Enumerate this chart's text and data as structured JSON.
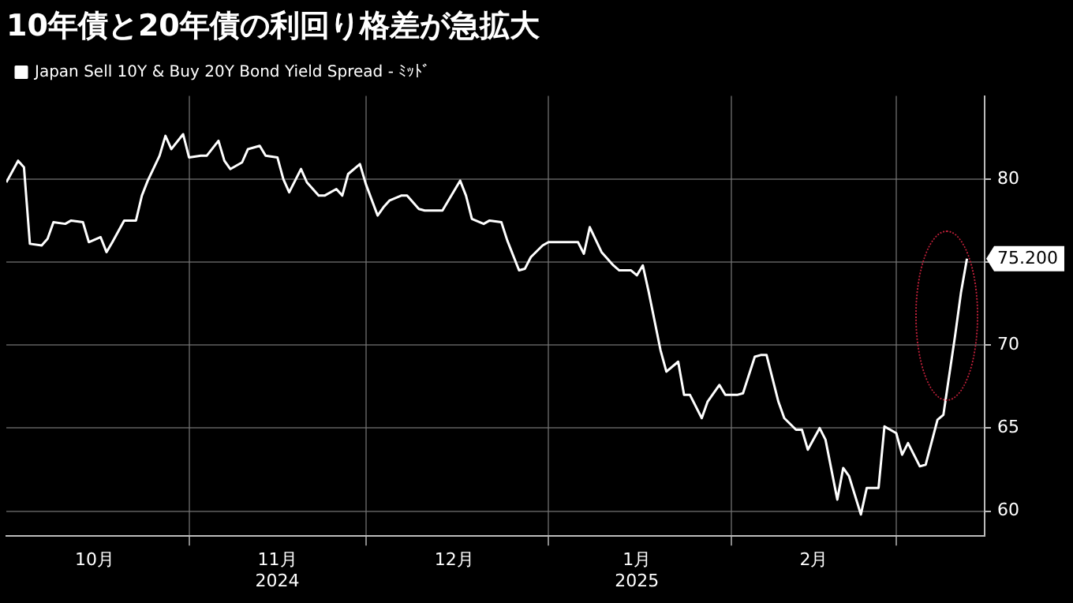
{
  "chart_data": {
    "type": "line",
    "title": "10年債と20年債の利回り格差が急拡大",
    "x": [
      "2024-10-01",
      "2024-10-03",
      "2024-10-04",
      "2024-10-05",
      "2024-10-07",
      "2024-10-08",
      "2024-10-09",
      "2024-10-11",
      "2024-10-12",
      "2024-10-14",
      "2024-10-15",
      "2024-10-17",
      "2024-10-18",
      "2024-10-19",
      "2024-10-21",
      "2024-10-23",
      "2024-10-24",
      "2024-10-25",
      "2024-10-27",
      "2024-10-28",
      "2024-10-29",
      "2024-10-31",
      "2024-11-01",
      "2024-11-03",
      "2024-11-04",
      "2024-11-06",
      "2024-11-07",
      "2024-11-08",
      "2024-11-10",
      "2024-11-11",
      "2024-11-13",
      "2024-11-14",
      "2024-11-16",
      "2024-11-17",
      "2024-11-18",
      "2024-11-20",
      "2024-11-21",
      "2024-11-23",
      "2024-11-24",
      "2024-11-26",
      "2024-11-27",
      "2024-11-28",
      "2024-11-30",
      "2024-12-01",
      "2024-12-03",
      "2024-12-04",
      "2024-12-05",
      "2024-12-07",
      "2024-12-08",
      "2024-12-10",
      "2024-12-11",
      "2024-12-13",
      "2024-12-14",
      "2024-12-17",
      "2024-12-18",
      "2024-12-19",
      "2024-12-21",
      "2024-12-22",
      "2024-12-24",
      "2024-12-25",
      "2024-12-27",
      "2024-12-28",
      "2024-12-29",
      "2024-12-31",
      "2025-01-01",
      "2025-01-03",
      "2025-01-04",
      "2025-01-06",
      "2025-01-07",
      "2025-01-08",
      "2025-01-10",
      "2025-01-12",
      "2025-01-13",
      "2025-01-15",
      "2025-01-16",
      "2025-01-17",
      "2025-01-18",
      "2025-01-20",
      "2025-01-21",
      "2025-01-23",
      "2025-01-24",
      "2025-01-25",
      "2025-01-27",
      "2025-01-28",
      "2025-01-30",
      "2025-01-31",
      "2025-02-02",
      "2025-02-03",
      "2025-02-05",
      "2025-02-06",
      "2025-02-07",
      "2025-02-09",
      "2025-02-10",
      "2025-02-12",
      "2025-02-13",
      "2025-02-14",
      "2025-02-16",
      "2025-02-17",
      "2025-02-19",
      "2025-02-20",
      "2025-02-21",
      "2025-02-23",
      "2025-02-24",
      "2025-02-26",
      "2025-02-27",
      "2025-03-01",
      "2025-03-02",
      "2025-03-03",
      "2025-03-05",
      "2025-03-06",
      "2025-03-08",
      "2025-03-09",
      "2025-03-11",
      "2025-03-12",
      "2025-03-13"
    ],
    "series": [
      {
        "name": "Japan Sell 10Y & Buy 20Y Bond Yield Spread - ﾐｯﾄﾞ",
        "color": "#ffffff",
        "values": [
          79.8,
          81.1,
          80.7,
          76.1,
          76.0,
          76.4,
          77.4,
          77.3,
          77.5,
          77.4,
          76.2,
          76.5,
          75.6,
          76.2,
          77.5,
          77.5,
          79.0,
          79.9,
          81.4,
          82.6,
          81.8,
          82.7,
          81.3,
          81.4,
          81.4,
          82.3,
          81.1,
          80.6,
          81.0,
          81.8,
          82.0,
          81.4,
          81.3,
          80.0,
          79.2,
          80.6,
          79.8,
          79.0,
          79.0,
          79.4,
          79.0,
          80.3,
          80.9,
          79.7,
          77.8,
          78.3,
          78.7,
          79.0,
          79.0,
          78.2,
          78.1,
          78.1,
          78.1,
          79.9,
          79.0,
          77.6,
          77.3,
          77.5,
          77.4,
          76.3,
          74.5,
          74.6,
          75.3,
          76.0,
          76.2,
          76.2,
          76.2,
          76.2,
          75.5,
          77.1,
          75.6,
          74.8,
          74.5,
          74.5,
          74.2,
          74.8,
          73.2,
          69.7,
          68.4,
          69.0,
          67.0,
          67.0,
          65.6,
          66.6,
          67.6,
          67.0,
          67.0,
          67.1,
          69.3,
          69.4,
          69.4,
          66.6,
          65.6,
          64.9,
          64.9,
          63.7,
          65.0,
          64.3,
          60.7,
          62.6,
          62.1,
          59.8,
          61.4,
          61.4,
          65.1,
          64.7,
          63.4,
          64.1,
          62.7,
          62.8,
          65.5,
          65.8,
          70.6,
          73.2,
          75.2
        ],
        "value_labels": [
          null,
          null,
          null,
          null,
          null,
          null,
          null,
          null,
          null,
          null,
          null,
          null,
          null,
          null,
          null,
          null,
          null,
          null,
          null,
          null,
          null,
          null,
          null,
          null,
          null,
          null,
          null,
          null,
          null,
          null,
          null,
          null,
          null,
          null,
          null,
          null,
          null,
          null,
          null,
          null,
          null,
          null,
          null,
          null,
          null,
          null,
          null,
          null,
          null,
          null,
          null,
          null,
          null,
          null,
          null,
          null,
          null,
          null,
          null,
          null,
          null,
          null,
          null,
          null,
          null,
          null,
          null,
          null,
          null,
          null,
          null,
          null,
          null,
          null,
          null,
          null,
          null,
          null,
          null,
          null,
          null,
          null,
          null,
          null,
          null,
          null,
          null,
          null,
          null,
          null,
          null,
          null,
          null,
          null,
          null,
          null,
          null,
          null,
          null,
          null,
          null,
          null,
          null,
          null,
          null,
          null,
          null,
          null,
          null,
          null,
          null,
          null,
          null,
          null,
          "75.200"
        ]
      }
    ],
    "xlim": [
      "2024-10-01",
      "2025-03-16"
    ],
    "xticks": [
      {
        "value": "2024-10-16",
        "label": "10月"
      },
      {
        "value": "2024-11-01",
        "label": null
      },
      {
        "value": "2024-11-16",
        "label": "11月\n2024"
      },
      {
        "value": "2024-12-01",
        "label": null
      },
      {
        "value": "2024-12-16",
        "label": "12月"
      },
      {
        "value": "2025-01-01",
        "label": null
      },
      {
        "value": "2025-01-16",
        "label": "1月\n2025"
      },
      {
        "value": "2025-02-01",
        "label": null
      },
      {
        "value": "2025-02-15",
        "label": "2月"
      },
      {
        "value": "2025-03-01",
        "label": null
      }
    ],
    "ylim": [
      58.5,
      85
    ],
    "yticks": [
      60,
      65,
      70,
      {
        "value": 75,
        "label": null
      },
      80
    ],
    "grid": true,
    "legend": "top left",
    "marker": "none",
    "line_style": "solid"
  }
}
